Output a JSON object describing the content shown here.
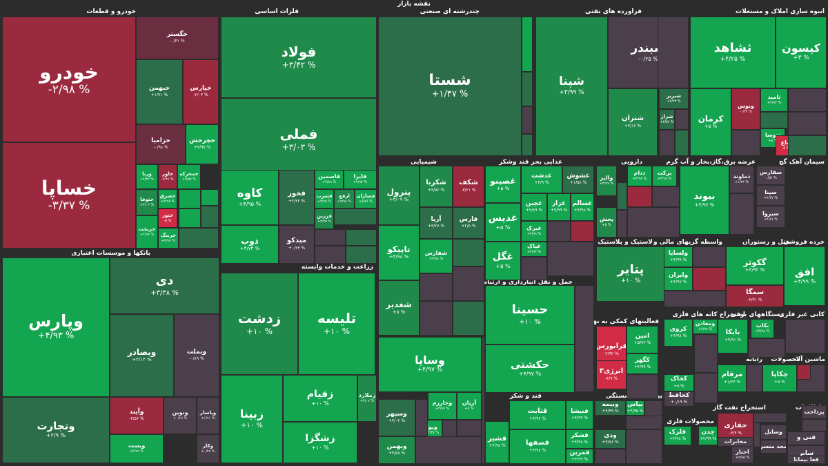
{
  "page_title": "نقشه بازار",
  "colors": {
    "bright_green": "#13a54f",
    "green": "#1f8a4a",
    "dark_green": "#2d6e4a",
    "neutral": "#4a3f4a",
    "dark_red": "#6b2e40",
    "red": "#9b2a3f",
    "bright_red": "#d12b46",
    "background": "#2c2c2c"
  },
  "sectors": [
    "خودرو و قطعات",
    "فلزات اساسی",
    "چندرشته ای صنعتی",
    "فراورده های نفتی",
    "انبوه سازی املاک و مستغلات",
    "بانکها و موسسات اعتباری",
    "زراعت و خدمات وابسته",
    "شیمیایی",
    "غذایی بجز قند وشکر",
    "دارویی",
    "عرضه برق،گاز،بخار و آب گرم",
    "سیمان آهک گچ",
    "لاستیک و پلاستیک",
    "واسطه گریهای مالی و",
    "هتل و رستوران",
    "خرده فروشی",
    "حمل و نقل انبارداری و ارتباطات",
    "سرمایه گذاریها",
    "قند و شکر",
    "فعالیتهای کمکی به نهاد های",
    "استخراج کانه های فلزی",
    "دستگاههای برقی",
    "کانی غیر فلزی",
    "کاشی و سرامیک",
    "رایانه",
    "محصولات",
    "ماشین آلات",
    "بیمه و بازنشستگی",
    "محصولات فلزی",
    "استخراج نفت گاز",
    "اطلاعات"
  ],
  "tiles": [
    {
      "name": "خودرو",
      "pct": "-۲/۹۸ %",
      "tone": "red"
    },
    {
      "name": "خساپا",
      "pct": "-۳/۳۷ %",
      "tone": "red"
    },
    {
      "name": "خگستر",
      "pct": "-۰/۴۱ %",
      "tone": "dark_red"
    },
    {
      "name": "خبهمن",
      "pct": "+۱/۷۱ %",
      "tone": "dark_green"
    },
    {
      "name": "خپارس",
      "pct": "-۲/۰۳ %",
      "tone": "red"
    },
    {
      "name": "خزامیا",
      "pct": "-۰/۹۸ %",
      "tone": "dark_red"
    },
    {
      "name": "خچرخش",
      "pct": "+۴/۹۵ %",
      "tone": "bright_green"
    },
    {
      "name": "ورنا",
      "pct": "+۴/۴۲ %",
      "tone": "bright_green"
    },
    {
      "name": "خاور",
      "pct": "-۲/۴۶ %",
      "tone": "red"
    },
    {
      "name": "خمحرکه",
      "pct": "+۳/۵۷ %",
      "tone": "bright_green"
    },
    {
      "name": "ختوقا",
      "pct": "+۳/۰۶ %",
      "tone": "green"
    },
    {
      "name": "خشرق",
      "pct": "+۴/۹۸ %",
      "tone": "bright_green"
    },
    {
      "name": "ختور",
      "pct": "-۵ %",
      "tone": "bright_red"
    },
    {
      "name": "خریخت",
      "pct": "+۴/۹۷ %",
      "tone": "bright_green"
    },
    {
      "name": "خرینگ",
      "pct": "+۴/۹۹ %",
      "tone": "bright_green"
    },
    {
      "name": "فولاد",
      "pct": "+۳/۴۲ %",
      "tone": "green"
    },
    {
      "name": "فملی",
      "pct": "+۳/۰۳ %",
      "tone": "green"
    },
    {
      "name": "کاوه",
      "pct": "+۴/۹۵ %",
      "tone": "bright_green"
    },
    {
      "name": "فخوز",
      "pct": "+۲/۲۲ %",
      "tone": "dark_green"
    },
    {
      "name": "فاسمین",
      "pct": "+۴/۸۹ %",
      "tone": "bright_green"
    },
    {
      "name": "فایرا",
      "pct": "+۴/۹۴ %",
      "tone": "bright_green"
    },
    {
      "name": "فسرب",
      "pct": "+۴/۷۵ %",
      "tone": "bright_green"
    },
    {
      "name": "ارفع",
      "pct": "+۲/۹۸ %",
      "tone": "green"
    },
    {
      "name": "فسازان",
      "pct": "+۵/۷۶ %",
      "tone": "bright_green"
    },
    {
      "name": "فزرین",
      "pct": "+۲/۳۵ %",
      "tone": "green"
    },
    {
      "name": "ذوب",
      "pct": "+۴/۷۳ %",
      "tone": "bright_green"
    },
    {
      "name": "میدکو",
      "pct": "+۰/۲۳ %",
      "tone": "neutral"
    },
    {
      "name": "شستا",
      "pct": "+۱/۴۷ %",
      "tone": "dark_green"
    },
    {
      "name": "شپنا",
      "pct": "+۳/۹۹ %",
      "tone": "green"
    },
    {
      "name": "شبندر",
      "pct": "-۰/۲۵ %",
      "tone": "neutral"
    },
    {
      "name": "شبریز",
      "pct": "+۲/۳۳ %",
      "tone": "dark_green"
    },
    {
      "name": "شتران",
      "pct": "+۴/۱۶ %",
      "tone": "green"
    },
    {
      "name": "شراز",
      "pct": "+۳/۵۲ %",
      "tone": "dark_green"
    },
    {
      "name": "ثشاهد",
      "pct": "+۴/۲۵ %",
      "tone": "bright_green"
    },
    {
      "name": "کیسون",
      "pct": "+۳ %",
      "tone": "bright_green"
    },
    {
      "name": "کرمان",
      "pct": "+۵ %",
      "tone": "bright_green"
    },
    {
      "name": "ونوس",
      "pct": "-۰/۳۴ %",
      "tone": "red"
    },
    {
      "name": "ثامید",
      "pct": "+۲/۹۲ %",
      "tone": "bright_green"
    },
    {
      "name": "ثتوسا",
      "pct": "+۵ %",
      "tone": "bright_green"
    },
    {
      "name": "ثباغ",
      "pct": "-۵ %",
      "tone": "bright_red"
    },
    {
      "name": "وپارس",
      "pct": "+۴/۹۳ %",
      "tone": "bright_green"
    },
    {
      "name": "دی",
      "pct": "+۳/۳۸ %",
      "tone": "dark_green"
    },
    {
      "name": "وبصادر",
      "pct": "+۲/۱۲ %",
      "tone": "dark_green"
    },
    {
      "name": "وبملت",
      "pct": "-۰/۸۹ %",
      "tone": "neutral"
    },
    {
      "name": "وتجارت",
      "pct": "+۲/۹ %",
      "tone": "dark_green"
    },
    {
      "name": "وآیند",
      "pct": "-۳/۵۶ %",
      "tone": "red"
    },
    {
      "name": "ونوین",
      "pct": "+۰/۶۹ %",
      "tone": "neutral"
    },
    {
      "name": "وپاسار",
      "pct": "+۱/۹۱ %",
      "tone": "neutral"
    },
    {
      "name": "وکار",
      "pct": "+۰/۲۸ %",
      "tone": "neutral"
    },
    {
      "name": "ویست",
      "pct": "+۴/۹۹ %",
      "tone": "bright_green"
    },
    {
      "name": "زدشت",
      "pct": "+۱۰ %",
      "tone": "green"
    },
    {
      "name": "تلیسه",
      "pct": "+۱۰ %",
      "tone": "bright_green"
    },
    {
      "name": "زبینا",
      "pct": "+۱۰ %",
      "tone": "bright_green"
    },
    {
      "name": "زقیام",
      "pct": "+۱۰ %",
      "tone": "bright_green"
    },
    {
      "name": "زملارد",
      "pct": "+۳/۰۷ %",
      "tone": "green"
    },
    {
      "name": "زشگزا",
      "pct": "+۱۰ %",
      "tone": "bright_green"
    },
    {
      "name": "پترول",
      "pct": "+۳/۰۹ %",
      "tone": "green"
    },
    {
      "name": "شکربا",
      "pct": "+۴/۵۶ %",
      "tone": "green"
    },
    {
      "name": "شکف",
      "pct": "-۳/۲۱ %",
      "tone": "red"
    },
    {
      "name": "آریا",
      "pct": "+۳/۲۷ %",
      "tone": "dark_green"
    },
    {
      "name": "فارس",
      "pct": "+۲/۵ %",
      "tone": "dark_green"
    },
    {
      "name": "تاپیکو",
      "pct": "+۴/۹۸ %",
      "tone": "bright_green"
    },
    {
      "name": "شفارس",
      "pct": "+۴/۹۸ %",
      "tone": "bright_green"
    },
    {
      "name": "شغدیر",
      "pct": "+۵ %",
      "tone": "green"
    },
    {
      "name": "غصینو",
      "pct": "+۵ %",
      "tone": "bright_green"
    },
    {
      "name": "غشوش",
      "pct": "+۱/۵۸ %",
      "tone": "dark_green"
    },
    {
      "name": "غدشت",
      "pct": "+۴/۹ %",
      "tone": "bright_green"
    },
    {
      "name": "غدیس",
      "pct": "+۵ %",
      "tone": "bright_green"
    },
    {
      "name": "غچین",
      "pct": "+۴/۸۹ %",
      "tone": "bright_green"
    },
    {
      "name": "غزاز",
      "pct": "+۴/۹۹ %",
      "tone": "bright_green"
    },
    {
      "name": "غسالم",
      "pct": "+۴/۹۸ %",
      "tone": "bright_green"
    },
    {
      "name": "غگل",
      "pct": "+۵ %",
      "tone": "bright_green"
    },
    {
      "name": "غبرک",
      "pct": "+۴/۹۹ %",
      "tone": "bright_green"
    },
    {
      "name": "غپاک",
      "pct": "+۴/۹۳ %",
      "tone": "bright_green"
    },
    {
      "name": "حسینا",
      "pct": "+۱۰ %",
      "tone": "bright_green"
    },
    {
      "name": "حکشتی",
      "pct": "+۴/۹۷ %",
      "tone": "bright_green"
    },
    {
      "name": "وسایا",
      "pct": "+۴/۹۷ %",
      "tone": "bright_green"
    },
    {
      "name": "وسپهر",
      "pct": "+۳/۰۲ %",
      "tone": "dark_green"
    },
    {
      "name": "وخارزم",
      "pct": "+۴/۹۹ %",
      "tone": "bright_green"
    },
    {
      "name": "ویوا",
      "pct": "+۴/۳۷ %",
      "tone": "bright_green"
    },
    {
      "name": "وبهمن",
      "pct": "+۴/۵۸ %",
      "tone": "green"
    },
    {
      "name": "آریان",
      "pct": "+۵ %",
      "tone": "bright_green"
    },
    {
      "name": "قثابت",
      "pct": "+۴/۹۶ %",
      "tone": "bright_green"
    },
    {
      "name": "قنیشا",
      "pct": "+۴/۹۹ %",
      "tone": "bright_green"
    },
    {
      "name": "قشیر",
      "pct": "+۴/۹۸ %",
      "tone": "bright_green"
    },
    {
      "name": "قشکر",
      "pct": "+۴/۹۸ %",
      "tone": "bright_green"
    },
    {
      "name": "قصفها",
      "pct": "+۴/۹۸ %",
      "tone": "bright_green"
    },
    {
      "name": "قمرین",
      "pct": "+۴/۹۹ %",
      "tone": "bright_green"
    },
    {
      "name": "والبر",
      "pct": "+۴/۹۹ %",
      "tone": "green"
    },
    {
      "name": "ددام",
      "pct": "+۴/۹۸ %",
      "tone": "bright_green"
    },
    {
      "name": "برکت",
      "pct": "+۴/۹۸ %",
      "tone": "bright_green"
    },
    {
      "name": "پخش",
      "pct": "+۵ %",
      "tone": "green"
    },
    {
      "name": "بیوند",
      "pct": "+۴/۹۷ %",
      "tone": "bright_green"
    },
    {
      "name": "دماوند",
      "pct": "+۱/۲۳ %",
      "tone": "neutral"
    },
    {
      "name": "سفارس",
      "pct": "-۰/۵۶ %",
      "tone": "neutral"
    },
    {
      "name": "سپنا",
      "pct": "+۴/۴۷ %",
      "tone": "neutral"
    },
    {
      "name": "سیزوا",
      "pct": "+۴/۶۷ %",
      "tone": "neutral"
    },
    {
      "name": "پتایر",
      "pct": "+۱۰ %",
      "tone": "green"
    },
    {
      "name": "ولساپا",
      "pct": "+۴/۹۹ %",
      "tone": "bright_green"
    },
    {
      "name": "وایران",
      "pct": "+۴/۹۷ %",
      "tone": "bright_green"
    },
    {
      "name": "گکوثر",
      "pct": "+۴/۹۲ %",
      "tone": "bright_green"
    },
    {
      "name": "سمگا",
      "pct": "-۳/۳۱ %",
      "tone": "red"
    },
    {
      "name": "افق",
      "pct": "+۴/۹۹ %",
      "tone": "bright_green"
    },
    {
      "name": "فرابورس",
      "pct": "-۲/۹۲ %",
      "tone": "bright_red"
    },
    {
      "name": "امین",
      "pct": "+۵/۷۲ %",
      "tone": "bright_green"
    },
    {
      "name": "انرژی۳",
      "pct": "-۴/۹ %",
      "tone": "bright_red"
    },
    {
      "name": "کگهر",
      "pct": "+۴/۹۹ %",
      "tone": "bright_green"
    },
    {
      "name": "کروی",
      "pct": "+۴/۹۸ %",
      "tone": "bright_green"
    },
    {
      "name": "ومعادن",
      "pct": "+۴/۹۹ %",
      "tone": "bright_green"
    },
    {
      "name": "بایکا",
      "pct": "+۴/۹۱ %",
      "tone": "bright_green"
    },
    {
      "name": "بکاب",
      "pct": "+۴/۹۸ %",
      "tone": "bright_green"
    },
    {
      "name": "کخاک",
      "pct": "+۵ %",
      "tone": "bright_green"
    },
    {
      "name": "کحافظ",
      "pct": "+۰/۱۹ %",
      "tone": "neutral"
    },
    {
      "name": "مرقام",
      "pct": "+۱/۲۳ %",
      "tone": "bright_green"
    },
    {
      "name": "چکاپا",
      "pct": "+۵ %",
      "tone": "bright_green"
    },
    {
      "name": "وبیمه",
      "pct": "+۴/۹۹ %",
      "tone": "dark_green"
    },
    {
      "name": "بپاس",
      "pct": "+۴/۹۵ %",
      "tone": "bright_green"
    },
    {
      "name": "ودی",
      "pct": "+۴/۷۶ %",
      "tone": "dark_green"
    },
    {
      "name": "فلزک",
      "pct": "+۴/۹۸ %",
      "tone": "bright_green"
    },
    {
      "name": "چدن",
      "pct": "+۴/۹۹ %",
      "tone": "bright_green"
    },
    {
      "name": "حفاری",
      "pct": "-۳/۴ %",
      "tone": "red"
    },
    {
      "name": "فنی و",
      "pct": "",
      "tone": "neutral"
    },
    {
      "name": "وسایل",
      "pct": "",
      "tone": "neutral"
    },
    {
      "name": "مخابرات",
      "pct": "",
      "tone": "neutral"
    },
    {
      "name": "اختار",
      "pct": "+۲/۹۵ %",
      "tone": "neutral"
    },
    {
      "name": "سایر",
      "pct": "",
      "tone": "neutral"
    },
    {
      "name": "فعا بیمانا",
      "pct": "",
      "tone": "neutral"
    },
    {
      "name": "محد منسر",
      "pct": "",
      "tone": "neutral"
    },
    {
      "name": "پرداخت",
      "pct": "",
      "tone": "neutral"
    }
  ]
}
